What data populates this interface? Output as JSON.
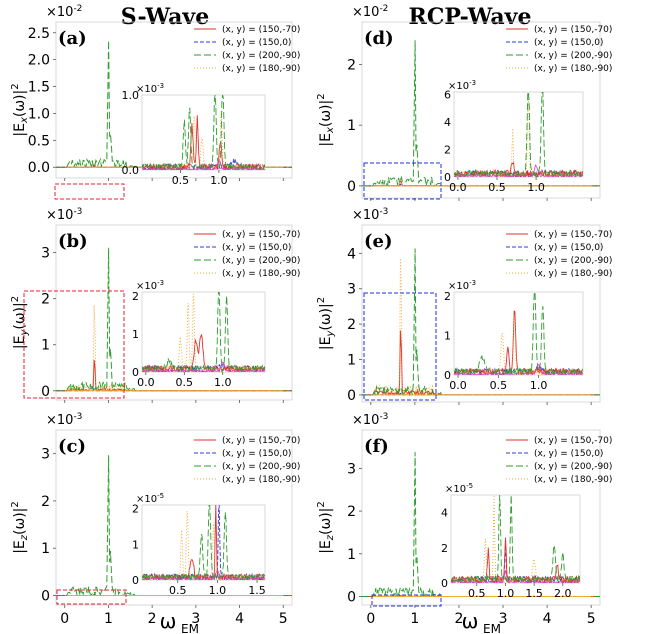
{
  "figure": {
    "column_titles": [
      {
        "text": "S-Wave",
        "color": "#e8212b"
      },
      {
        "text": "RCP-Wave",
        "color": "#1f2fd8"
      }
    ],
    "x_axis_label": "ω",
    "x_axis_sub": "EM",
    "colors": {
      "red": "#e03030",
      "blue": "#2e3bd8",
      "green": "#2e9e2e",
      "orange": "#f0a830",
      "pink": "#e040c0",
      "purple": "#8a40c0"
    }
  },
  "chart_data": [
    {
      "id": "a",
      "type": "line",
      "panel_label": "(a)",
      "ylabel": "|E",
      "ysub": "x",
      "ysuffix": "(ω)|",
      "ysup": "2",
      "exponent": "×10",
      "exponent_power": "-2",
      "ylim": [
        -0.2,
        2.7
      ],
      "yticks": [
        0.0,
        0.5,
        1.0,
        1.5,
        2.0,
        2.5
      ],
      "ytick_labels": [
        "0.0",
        "0.5",
        "1.0",
        "1.5",
        "2.0",
        "2.5"
      ],
      "xlim": [
        -0.2,
        5.2
      ],
      "xticks": [
        0,
        1,
        2,
        3,
        4,
        5
      ],
      "xtick_labels": [],
      "series": [
        {
          "name": "(x, y) = (150,-70)",
          "color": "red",
          "dash": "",
          "peak": 0.05
        },
        {
          "name": "(x, y) = (150,0)",
          "color": "blue",
          "dash": "4 2",
          "peak": 0.02
        },
        {
          "name": "(x, y) = (200,-90)",
          "color": "green",
          "dash": "7 3",
          "peak": 2.5
        },
        {
          "name": "(x, y) = (180,-90)",
          "color": "orange",
          "dash": "1 2",
          "peak": 0.06
        }
      ],
      "inset": {
        "exponent": "×10",
        "exponent_power": "-3",
        "xlim": [
          0.0,
          1.6
        ],
        "ylim": [
          0,
          1.0
        ],
        "xticks": [
          0.5,
          1.0
        ],
        "xtick_labels": [
          "0.5",
          "1.0"
        ],
        "yticks": [
          0.0,
          1.0
        ],
        "ytick_labels": [
          "0.0",
          "1.0"
        ]
      }
    },
    {
      "id": "b",
      "type": "line",
      "panel_label": "(b)",
      "ylabel": "|E",
      "ysub": "y",
      "ysuffix": "(ω)|",
      "ysup": "2",
      "exponent": "×10",
      "exponent_power": "-3",
      "ylim": [
        -0.2,
        3.6
      ],
      "yticks": [
        0,
        1,
        2,
        3
      ],
      "ytick_labels": [
        "0",
        "1",
        "2",
        "3"
      ],
      "xlim": [
        -0.2,
        5.2
      ],
      "xticks": [
        0,
        1,
        2,
        3,
        4,
        5
      ],
      "xtick_labels": [],
      "series": [
        {
          "name": "(x, y) = (150,-70)",
          "color": "red",
          "dash": "",
          "peak": 0.8
        },
        {
          "name": "(x, y) = (150,0)",
          "color": "blue",
          "dash": "4 2",
          "peak": 0.05
        },
        {
          "name": "(x, y) = (200,-90)",
          "color": "green",
          "dash": "7 3",
          "peak": 3.3
        },
        {
          "name": "(x, y) = (180,-90)",
          "color": "orange",
          "dash": "1 2",
          "peak": 2.1
        }
      ],
      "inset": {
        "exponent": "×10",
        "exponent_power": "-3",
        "xlim": [
          -0.05,
          1.55
        ],
        "ylim": [
          0,
          2.1
        ],
        "xticks": [
          0.0,
          0.5,
          1.0
        ],
        "xtick_labels": [
          "0.0",
          "0.5",
          "1.0"
        ],
        "yticks": [
          0,
          1,
          2
        ],
        "ytick_labels": [
          "0",
          "1",
          "2"
        ]
      }
    },
    {
      "id": "c",
      "type": "line",
      "panel_label": "(c)",
      "ylabel": "|E",
      "ysub": "z",
      "ysuffix": "(ω)|",
      "ysup": "2",
      "exponent": "×10",
      "exponent_power": "-3",
      "ylim": [
        -0.2,
        3.5
      ],
      "yticks": [
        0,
        1,
        2,
        3
      ],
      "ytick_labels": [
        "0",
        "1",
        "2",
        "3"
      ],
      "xlim": [
        -0.2,
        5.2
      ],
      "xticks": [
        0,
        1,
        2,
        3,
        4,
        5
      ],
      "xtick_labels": [
        "0",
        "1",
        "2",
        "3",
        "4",
        "5"
      ],
      "series": [
        {
          "name": "(x, y) = (150,-70)",
          "color": "red",
          "dash": "",
          "peak": 0.02
        },
        {
          "name": "(x, y) = (150,0)",
          "color": "blue",
          "dash": "4 2",
          "peak": 0.03
        },
        {
          "name": "(x, y) = (200,-90)",
          "color": "green",
          "dash": "7 3",
          "peak": 3.15
        },
        {
          "name": "(x, y) = (180,-90)",
          "color": "orange",
          "dash": "1 2",
          "peak": 0.02
        }
      ],
      "inset": {
        "exponent": "×10",
        "exponent_power": "-5",
        "xlim": [
          0.05,
          1.6
        ],
        "ylim": [
          0,
          2.1
        ],
        "xticks": [
          0.5,
          1.0,
          1.5
        ],
        "xtick_labels": [
          "0.5",
          "1.0",
          "1.5"
        ],
        "yticks": [
          0,
          1,
          2
        ],
        "ytick_labels": [
          "0",
          "1",
          "2"
        ]
      }
    },
    {
      "id": "d",
      "type": "line",
      "panel_label": "(d)",
      "ylabel": "|E",
      "ysub": "x",
      "ysuffix": "(ω)|",
      "ysup": "2",
      "exponent": "×10",
      "exponent_power": "-2",
      "ylim": [
        -0.2,
        2.7
      ],
      "yticks": [
        0,
        1,
        2
      ],
      "ytick_labels": [
        "0",
        "1",
        "2"
      ],
      "xlim": [
        -0.2,
        5.2
      ],
      "xticks": [
        0,
        1,
        2,
        3,
        4,
        5
      ],
      "xtick_labels": [],
      "series": [
        {
          "name": "(x, y) = (150,-70)",
          "color": "red",
          "dash": "",
          "peak": 0.1
        },
        {
          "name": "(x, y) = (150,0)",
          "color": "blue",
          "dash": "4 2",
          "peak": 0.03
        },
        {
          "name": "(x, y) = (200,-90)",
          "color": "green",
          "dash": "7 3",
          "peak": 2.55
        },
        {
          "name": "(x, y) = (180,-90)",
          "color": "orange",
          "dash": "1 2",
          "peak": 0.1
        }
      ],
      "inset": {
        "exponent": "×10",
        "exponent_power": "-3",
        "xlim": [
          -0.05,
          1.6
        ],
        "ylim": [
          0,
          6.2
        ],
        "xticks": [
          0.0,
          0.5,
          1.0
        ],
        "xtick_labels": [
          "0.0",
          "0.5",
          "1.0"
        ],
        "yticks": [
          0,
          2,
          4,
          6
        ],
        "ytick_labels": [
          "0",
          "2",
          "4",
          "6"
        ]
      }
    },
    {
      "id": "e",
      "type": "line",
      "panel_label": "(e)",
      "ylabel": "|E",
      "ysub": "y",
      "ysuffix": "(ω)|",
      "ysup": "2",
      "exponent": "×10",
      "exponent_power": "-3",
      "ylim": [
        -0.2,
        4.8
      ],
      "yticks": [
        0,
        1,
        2,
        3,
        4
      ],
      "ytick_labels": [
        "0",
        "1",
        "2",
        "3",
        "4"
      ],
      "xlim": [
        -0.2,
        5.2
      ],
      "xticks": [
        0,
        1,
        2,
        3,
        4,
        5
      ],
      "xtick_labels": [],
      "series": [
        {
          "name": "(x, y) = (150,-70)",
          "color": "red",
          "dash": "",
          "peak": 2.1
        },
        {
          "name": "(x, y) = (150,0)",
          "color": "blue",
          "dash": "4 2",
          "peak": 0.05
        },
        {
          "name": "(x, y) = (200,-90)",
          "color": "green",
          "dash": "7 3",
          "peak": 4.4
        },
        {
          "name": "(x, y) = (180,-90)",
          "color": "orange",
          "dash": "1 2",
          "peak": 4.5
        }
      ],
      "inset": {
        "exponent": "×10",
        "exponent_power": "-3",
        "xlim": [
          -0.05,
          1.55
        ],
        "ylim": [
          0,
          2.1
        ],
        "xticks": [
          0.0,
          0.5,
          1.0
        ],
        "xtick_labels": [
          "0.0",
          "0.5",
          "1.0"
        ],
        "yticks": [
          0,
          1,
          2
        ],
        "ytick_labels": [
          "0",
          "1",
          "2"
        ]
      }
    },
    {
      "id": "f",
      "type": "line",
      "panel_label": "(f)",
      "ylabel": "|E",
      "ysub": "z",
      "ysuffix": "(ω)|",
      "ysup": "2",
      "exponent": "×10",
      "exponent_power": "-3",
      "ylim": [
        -0.2,
        3.9
      ],
      "yticks": [
        0,
        1,
        2,
        3
      ],
      "ytick_labels": [
        "0",
        "1",
        "2",
        "3"
      ],
      "xlim": [
        -0.2,
        5.2
      ],
      "xticks": [
        0,
        1,
        2,
        3,
        4,
        5
      ],
      "xtick_labels": [
        "0",
        "1",
        "2",
        "3",
        "4",
        "5"
      ],
      "series": [
        {
          "name": "(x, y) = (150,-70)",
          "color": "red",
          "dash": "",
          "peak": 0.03
        },
        {
          "name": "(x, y) = (150,0)",
          "color": "blue",
          "dash": "4 2",
          "peak": 0.03
        },
        {
          "name": "(x, y) = (200,-90)",
          "color": "green",
          "dash": "7 3",
          "peak": 3.6
        },
        {
          "name": "(x, v) = (180,-90)",
          "color": "orange",
          "dash": "1 2",
          "peak": 0.03
        }
      ],
      "inset": {
        "exponent": "×10",
        "exponent_power": "-5",
        "xlim": [
          0.05,
          2.3
        ],
        "ylim": [
          0,
          5.0
        ],
        "xticks": [
          0.5,
          1.0,
          1.5,
          2.0
        ],
        "xtick_labels": [
          "0.5",
          "1.0",
          "1.5",
          "2.0"
        ],
        "yticks": [
          0,
          2,
          4
        ],
        "ytick_labels": [
          "0",
          "2",
          "4"
        ]
      }
    }
  ]
}
